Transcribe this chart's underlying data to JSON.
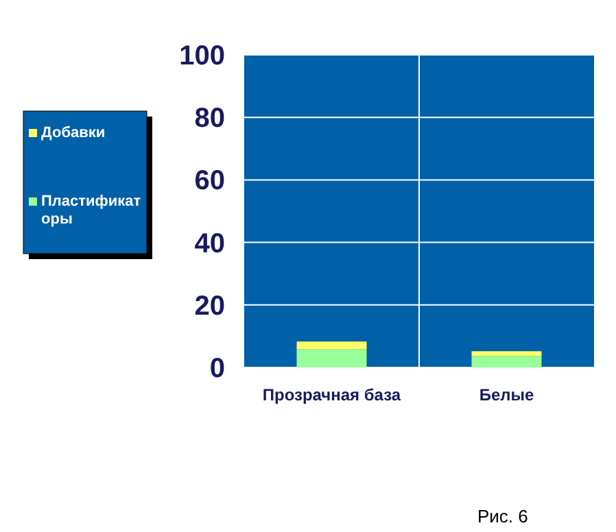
{
  "chart_data": {
    "type": "bar",
    "stacked": true,
    "categories": [
      "Прозрачная база",
      "Белые"
    ],
    "series": [
      {
        "name": "Пластификаторы",
        "color": "#99ff99",
        "values": [
          5.8,
          3.6
        ]
      },
      {
        "name": "Добавки",
        "color": "#ffff66",
        "values": [
          2.5,
          1.6
        ]
      }
    ],
    "ylim": [
      0,
      100
    ],
    "yticks": [
      0,
      20,
      40,
      60,
      80,
      100
    ],
    "grid": true,
    "legend": "left",
    "annotations": [
      "Рис. 6"
    ]
  }
}
